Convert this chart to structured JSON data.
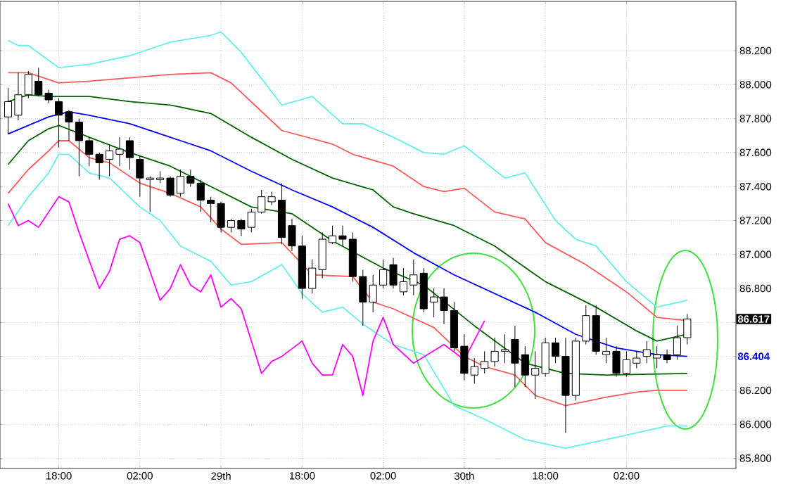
{
  "chart_data": {
    "type": "candlestick",
    "categories": [
      null,
      null,
      null,
      null,
      null,
      "18:00",
      null,
      null,
      null,
      null,
      null,
      null,
      null,
      "02:00",
      null,
      null,
      null,
      null,
      null,
      null,
      null,
      "29th",
      null,
      null,
      null,
      null,
      null,
      null,
      null,
      "18:00",
      null,
      null,
      null,
      null,
      null,
      null,
      null,
      "02:00",
      null,
      null,
      null,
      null,
      null,
      null,
      null,
      "30th",
      null,
      null,
      null,
      null,
      null,
      null,
      null,
      "18:00",
      null,
      null,
      null,
      null,
      null,
      null,
      null,
      "02:00",
      null,
      null,
      null,
      null,
      null,
      null
    ],
    "ohlc": [
      [
        87.81,
        87.98,
        87.71,
        87.9
      ],
      [
        87.82,
        88.07,
        87.79,
        87.94
      ],
      [
        87.94,
        88.08,
        87.92,
        88.06
      ],
      [
        88.02,
        88.1,
        87.93,
        87.94
      ],
      [
        87.95,
        87.97,
        87.89,
        87.91
      ],
      [
        87.9,
        87.92,
        87.63,
        87.82
      ],
      [
        87.84,
        87.85,
        87.67,
        87.78
      ],
      [
        87.78,
        87.8,
        87.46,
        87.67
      ],
      [
        87.67,
        87.69,
        87.52,
        87.59
      ],
      [
        87.59,
        87.6,
        87.44,
        87.54
      ],
      [
        87.56,
        87.64,
        87.46,
        87.61
      ],
      [
        87.59,
        87.69,
        87.52,
        87.62
      ],
      [
        87.67,
        87.69,
        87.5,
        87.57
      ],
      [
        87.56,
        87.58,
        87.34,
        87.45
      ],
      [
        87.44,
        87.46,
        87.25,
        87.45
      ],
      [
        87.44,
        87.49,
        87.42,
        87.45
      ],
      [
        87.45,
        87.46,
        87.34,
        87.35
      ],
      [
        87.36,
        87.5,
        87.34,
        87.46
      ],
      [
        87.46,
        87.5,
        87.4,
        87.42
      ],
      [
        87.42,
        87.44,
        87.25,
        87.32
      ],
      [
        87.32,
        87.34,
        87.19,
        87.3
      ],
      [
        87.3,
        87.31,
        87.13,
        87.16
      ],
      [
        87.16,
        87.21,
        87.13,
        87.2
      ],
      [
        87.2,
        87.21,
        87.11,
        87.15
      ],
      [
        87.16,
        87.27,
        87.13,
        87.25
      ],
      [
        87.25,
        87.38,
        87.24,
        87.34
      ],
      [
        87.31,
        87.37,
        87.29,
        87.34
      ],
      [
        87.32,
        87.42,
        87.06,
        87.1
      ],
      [
        87.17,
        87.21,
        87.02,
        87.05
      ],
      [
        87.05,
        87.11,
        86.74,
        86.8
      ],
      [
        86.8,
        86.97,
        86.77,
        86.92
      ],
      [
        86.91,
        87.13,
        86.86,
        87.09
      ],
      [
        87.07,
        87.17,
        87.06,
        87.11
      ],
      [
        87.11,
        87.17,
        87.05,
        87.09
      ],
      [
        87.09,
        87.13,
        86.84,
        86.87
      ],
      [
        86.87,
        86.91,
        86.58,
        86.72
      ],
      [
        86.72,
        86.88,
        86.66,
        86.82
      ],
      [
        86.82,
        86.97,
        86.8,
        86.91
      ],
      [
        86.94,
        86.98,
        86.8,
        86.82
      ],
      [
        86.78,
        86.92,
        86.76,
        86.84
      ],
      [
        86.82,
        86.97,
        86.76,
        86.88
      ],
      [
        86.89,
        86.92,
        86.66,
        86.68
      ],
      [
        86.72,
        86.8,
        86.63,
        86.75
      ],
      [
        86.75,
        86.8,
        86.59,
        86.67
      ],
      [
        86.67,
        86.72,
        86.43,
        86.45
      ],
      [
        86.46,
        86.53,
        86.26,
        86.3
      ],
      [
        86.29,
        86.39,
        86.24,
        86.34
      ],
      [
        86.33,
        86.43,
        86.3,
        86.37
      ],
      [
        86.37,
        86.51,
        86.34,
        86.43
      ],
      [
        86.43,
        86.53,
        86.36,
        86.44
      ],
      [
        86.5,
        86.58,
        86.22,
        86.36
      ],
      [
        86.41,
        86.46,
        86.22,
        86.29
      ],
      [
        86.29,
        86.43,
        86.15,
        86.33
      ],
      [
        86.3,
        86.51,
        86.28,
        86.48
      ],
      [
        86.48,
        86.51,
        86.36,
        86.4
      ],
      [
        86.4,
        86.51,
        85.95,
        86.17
      ],
      [
        86.17,
        86.51,
        86.14,
        86.49
      ],
      [
        86.49,
        86.7,
        86.47,
        86.64
      ],
      [
        86.64,
        86.7,
        86.41,
        86.43
      ],
      [
        86.41,
        86.51,
        86.36,
        86.43
      ],
      [
        86.43,
        86.46,
        86.28,
        86.3
      ],
      [
        86.3,
        86.43,
        86.28,
        86.38
      ],
      [
        86.36,
        86.43,
        86.33,
        86.39
      ],
      [
        86.4,
        86.49,
        86.36,
        86.44
      ],
      [
        86.39,
        86.46,
        86.33,
        86.41
      ],
      [
        86.41,
        86.44,
        86.36,
        86.38
      ],
      [
        86.41,
        86.58,
        86.38,
        86.51
      ],
      [
        86.51,
        86.65,
        86.47,
        86.62
      ]
    ],
    "series": [
      {
        "type": "line",
        "color": "#66eeee",
        "values": [
          88.26,
          88.23,
          88.23,
          null,
          null,
          88.1,
          null,
          null,
          88.12,
          null,
          null,
          null,
          88.17,
          null,
          null,
          null,
          88.25,
          null,
          null,
          null,
          88.29,
          88.31,
          null,
          88.19,
          null,
          null,
          null,
          87.88,
          null,
          null,
          87.93,
          null,
          null,
          87.77,
          null,
          87.77,
          null,
          null,
          87.69,
          null,
          null,
          87.6,
          null,
          87.59,
          null,
          87.64,
          null,
          null,
          null,
          87.45,
          null,
          87.48,
          null,
          null,
          87.2,
          null,
          87.09,
          null,
          87.05,
          null,
          null,
          86.84,
          null,
          null,
          86.69,
          null,
          null,
          86.73
        ]
      },
      {
        "type": "line",
        "color": "#66eeee",
        "values": [
          87.17,
          null,
          87.34,
          null,
          87.48,
          87.59,
          87.59,
          null,
          87.48,
          null,
          87.45,
          null,
          null,
          87.28,
          null,
          87.2,
          null,
          87.05,
          null,
          null,
          86.96,
          null,
          86.82,
          null,
          86.84,
          null,
          null,
          86.94,
          null,
          86.77,
          null,
          86.66,
          null,
          86.69,
          null,
          86.59,
          null,
          null,
          86.47,
          null,
          null,
          86.41,
          null,
          null,
          86.11,
          null,
          null,
          86.03,
          null,
          null,
          null,
          85.91,
          null,
          null,
          null,
          85.86,
          null,
          null,
          null,
          85.91,
          null,
          null,
          85.95,
          null,
          null,
          85.99,
          null,
          85.99
        ]
      },
      {
        "type": "line",
        "color": "#ff5a5a",
        "values": [
          88.07,
          null,
          88.07,
          null,
          null,
          88.01,
          null,
          null,
          88.02,
          null,
          null,
          null,
          88.04,
          null,
          null,
          null,
          88.06,
          null,
          null,
          null,
          88.07,
          null,
          88.01,
          null,
          null,
          null,
          null,
          87.73,
          null,
          null,
          null,
          null,
          87.65,
          null,
          87.59,
          null,
          null,
          null,
          87.52,
          null,
          null,
          87.4,
          null,
          87.37,
          null,
          87.39,
          null,
          null,
          87.25,
          null,
          null,
          87.21,
          null,
          87.07,
          null,
          null,
          null,
          86.94,
          null,
          null,
          null,
          86.78,
          null,
          null,
          86.63,
          null,
          null,
          86.61
        ]
      },
      {
        "type": "line",
        "color": "#ff5a5a",
        "values": [
          87.36,
          null,
          87.5,
          null,
          87.61,
          87.67,
          87.67,
          null,
          87.57,
          null,
          87.54,
          null,
          null,
          87.42,
          null,
          null,
          87.36,
          null,
          null,
          87.28,
          null,
          87.15,
          null,
          87.06,
          null,
          null,
          null,
          87.07,
          null,
          null,
          86.88,
          null,
          null,
          null,
          86.87,
          null,
          86.72,
          null,
          86.68,
          null,
          null,
          null,
          86.57,
          null,
          null,
          86.4,
          null,
          86.34,
          null,
          null,
          86.29,
          null,
          86.17,
          null,
          null,
          86.11,
          null,
          null,
          null,
          86.16,
          null,
          null,
          86.19,
          null,
          86.2,
          null,
          null,
          86.2
        ]
      },
      {
        "type": "line",
        "color": "#006400",
        "values": [
          87.9,
          null,
          87.94,
          null,
          87.93,
          null,
          null,
          null,
          87.93,
          null,
          null,
          null,
          87.9,
          null,
          null,
          null,
          87.88,
          null,
          null,
          null,
          87.83,
          null,
          null,
          null,
          87.69,
          null,
          null,
          null,
          87.56,
          null,
          null,
          null,
          87.45,
          null,
          null,
          null,
          87.38,
          null,
          87.28,
          null,
          87.24,
          null,
          null,
          null,
          87.17,
          null,
          null,
          null,
          87.05,
          null,
          null,
          null,
          null,
          86.84,
          null,
          null,
          null,
          null,
          86.69,
          null,
          null,
          null,
          86.55,
          null,
          86.49,
          null,
          null,
          86.53
        ]
      },
      {
        "type": "line",
        "color": "#006400",
        "values": [
          87.53,
          null,
          87.67,
          null,
          87.74,
          87.76,
          null,
          null,
          87.69,
          null,
          null,
          null,
          87.6,
          null,
          null,
          null,
          87.52,
          null,
          null,
          null,
          87.4,
          null,
          null,
          null,
          87.28,
          null,
          null,
          null,
          87.24,
          null,
          null,
          null,
          87.08,
          null,
          null,
          null,
          null,
          86.92,
          null,
          null,
          null,
          86.82,
          null,
          null,
          null,
          null,
          86.58,
          null,
          null,
          null,
          null,
          86.36,
          null,
          null,
          null,
          86.3,
          null,
          null,
          null,
          86.29,
          null,
          null,
          null,
          null,
          null,
          null,
          null,
          86.3
        ]
      },
      {
        "type": "line",
        "color": "#0000ff",
        "values": [
          87.71,
          null,
          null,
          null,
          87.81,
          null,
          87.84,
          null,
          87.82,
          null,
          null,
          null,
          87.77,
          null,
          null,
          null,
          87.69,
          null,
          null,
          null,
          87.61,
          null,
          null,
          null,
          87.49,
          null,
          null,
          null,
          87.38,
          null,
          null,
          null,
          87.28,
          null,
          null,
          null,
          87.16,
          null,
          null,
          null,
          87.01,
          null,
          null,
          null,
          86.88,
          null,
          null,
          null,
          86.77,
          null,
          null,
          null,
          86.66,
          null,
          null,
          null,
          86.53,
          null,
          null,
          null,
          86.45,
          null,
          null,
          null,
          86.41,
          null,
          null,
          86.4
        ]
      },
      {
        "type": "line",
        "color": "#ff00ff",
        "values": [
          87.3,
          87.17,
          87.2,
          87.16,
          null,
          87.34,
          87.31,
          87.13,
          null,
          86.8,
          86.9,
          87.09,
          87.11,
          87.07,
          null,
          86.73,
          86.8,
          86.94,
          86.82,
          86.78,
          86.88,
          86.69,
          86.74,
          86.68,
          null,
          86.3,
          86.37,
          86.4,
          null,
          86.49,
          86.36,
          86.29,
          86.29,
          86.47,
          86.4,
          86.17,
          86.49,
          86.63,
          86.47,
          null,
          86.36,
          null,
          null,
          86.47,
          null,
          86.38,
          null,
          86.61,
          null,
          null,
          null,
          null,
          null,
          null,
          null,
          null,
          null,
          null,
          null,
          null,
          null,
          null,
          null,
          null,
          null,
          null,
          null,
          null
        ]
      }
    ],
    "ylim": [
      85.74,
      88.49
    ],
    "yticks": [
      {
        "value": 85.8,
        "label": "85.800"
      },
      {
        "value": 86.0,
        "label": "86.000"
      },
      {
        "value": 86.2,
        "label": "86.200"
      },
      {
        "value": 86.4,
        "label": null
      },
      {
        "value": 86.6,
        "label": null
      },
      {
        "value": 86.8,
        "label": "86.800"
      },
      {
        "value": 87.0,
        "label": "87.000"
      },
      {
        "value": 87.2,
        "label": "87.200"
      },
      {
        "value": 87.4,
        "label": "87.400"
      },
      {
        "value": 87.6,
        "label": "87.600"
      },
      {
        "value": 87.8,
        "label": "87.800"
      },
      {
        "value": 88.0,
        "label": "88.000"
      },
      {
        "value": 88.2,
        "label": "88.200"
      }
    ],
    "grid": true,
    "annotations": [
      "86.617",
      "86.404"
    ]
  }
}
